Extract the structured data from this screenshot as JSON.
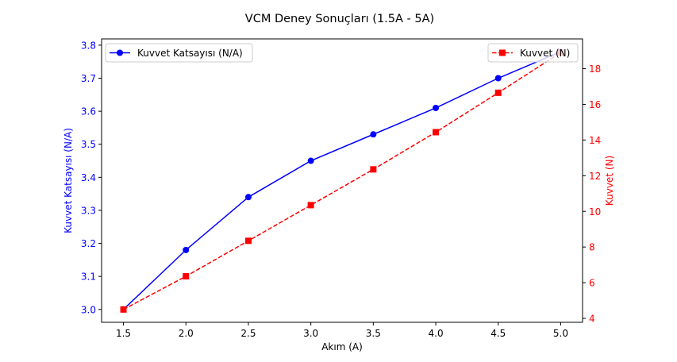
{
  "chart_data": {
    "type": "line",
    "title": "VCM Deney Sonuçları (1.5A - 5A)",
    "xlabel": "Akım (A)",
    "ylabel_left": "Kuvvet Katsayısı (N/A)",
    "ylabel_right": "Kuvvet (N)",
    "x": [
      1.5,
      2.0,
      2.5,
      3.0,
      3.5,
      4.0,
      4.5,
      5.0
    ],
    "x_ticks": [
      "1.5",
      "2.0",
      "2.5",
      "3.0",
      "3.5",
      "4.0",
      "4.5",
      "5.0"
    ],
    "xlim": [
      1.325,
      5.175
    ],
    "y_left_ticks": [
      "3.0",
      "3.1",
      "3.2",
      "3.3",
      "3.4",
      "3.5",
      "3.6",
      "3.7",
      "3.8"
    ],
    "y_left_tick_values": [
      3.0,
      3.1,
      3.2,
      3.3,
      3.4,
      3.5,
      3.6,
      3.7,
      3.8
    ],
    "ylim_left": [
      2.961,
      3.819
    ],
    "y_right_ticks": [
      "4",
      "6",
      "8",
      "10",
      "12",
      "14",
      "16",
      "18"
    ],
    "y_right_tick_values": [
      4,
      6,
      8,
      10,
      12,
      14,
      16,
      18
    ],
    "ylim_right": [
      3.78,
      19.67
    ],
    "series": [
      {
        "name": "Kuvvet Katsayısı (N/A)",
        "axis": "left",
        "color": "#0000ff",
        "linestyle": "solid",
        "marker": "circle",
        "values": [
          3.0,
          3.18,
          3.34,
          3.45,
          3.53,
          3.61,
          3.7,
          3.78
        ]
      },
      {
        "name": "Kuvvet (N)",
        "axis": "right",
        "color": "#ff0000",
        "linestyle": "dashed",
        "marker": "square",
        "values": [
          4.5,
          6.36,
          8.35,
          10.35,
          12.355,
          14.44,
          16.65,
          18.9
        ]
      }
    ],
    "legend_left_position": "upper-left",
    "legend_right_position": "upper-right",
    "grid": false
  }
}
